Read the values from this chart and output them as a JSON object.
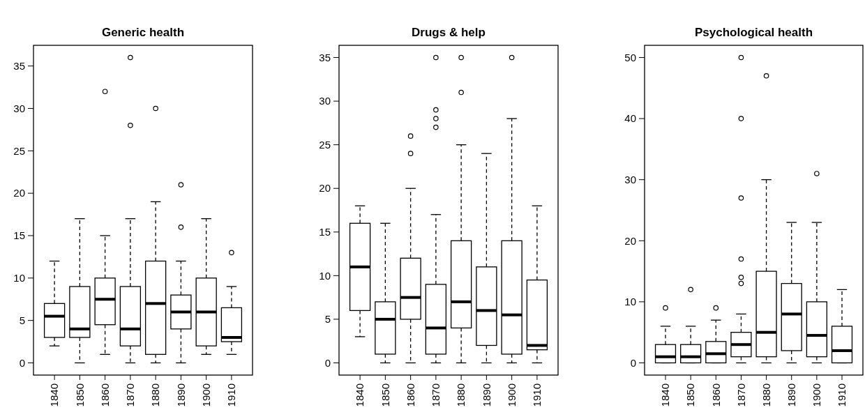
{
  "chart_data": [
    {
      "type": "box",
      "title": "Generic health",
      "categories": [
        "1840",
        "1850",
        "1860",
        "1870",
        "1880",
        "1890",
        "1900",
        "1910"
      ],
      "ylim": [
        -1.44,
        37.44
      ],
      "yticks": [
        0,
        5,
        10,
        15,
        20,
        25,
        30,
        35
      ],
      "boxes": [
        {
          "low": 2,
          "q1": 3,
          "median": 5.5,
          "q3": 7,
          "high": 12
        },
        {
          "low": 0,
          "q1": 3,
          "median": 4,
          "q3": 9,
          "high": 17
        },
        {
          "low": 1,
          "q1": 4.5,
          "median": 7.5,
          "q3": 10,
          "high": 15,
          "outliers": [
            32
          ]
        },
        {
          "low": 0,
          "q1": 2,
          "median": 4,
          "q3": 9,
          "high": 17,
          "outliers": [
            36,
            28
          ]
        },
        {
          "low": 0,
          "q1": 1,
          "median": 7,
          "q3": 12,
          "high": 19,
          "outliers": [
            30
          ]
        },
        {
          "low": 0,
          "q1": 4,
          "median": 6,
          "q3": 8,
          "high": 12,
          "outliers": [
            21,
            16
          ]
        },
        {
          "low": 1,
          "q1": 2,
          "median": 6,
          "q3": 10,
          "high": 17
        },
        {
          "low": 1,
          "q1": 2.5,
          "median": 3,
          "q3": 6.5,
          "high": 9,
          "outliers": [
            13
          ]
        }
      ]
    },
    {
      "type": "box",
      "title": "Drugs & help",
      "categories": [
        "1840",
        "1850",
        "1860",
        "1870",
        "1880",
        "1890",
        "1900",
        "1910"
      ],
      "ylim": [
        -1.4,
        36.4
      ],
      "yticks": [
        0,
        5,
        10,
        15,
        20,
        25,
        30,
        35
      ],
      "boxes": [
        {
          "low": 3,
          "q1": 6,
          "median": 11,
          "q3": 16,
          "high": 18
        },
        {
          "low": 0,
          "q1": 1,
          "median": 5,
          "q3": 7,
          "high": 16
        },
        {
          "low": 0,
          "q1": 5,
          "median": 7.5,
          "q3": 12,
          "high": 20,
          "outliers": [
            26,
            24
          ]
        },
        {
          "low": 0,
          "q1": 1,
          "median": 4,
          "q3": 9,
          "high": 17,
          "outliers": [
            35,
            29,
            28,
            27
          ]
        },
        {
          "low": 0,
          "q1": 4,
          "median": 7,
          "q3": 14,
          "high": 25,
          "outliers": [
            35,
            31
          ]
        },
        {
          "low": 0,
          "q1": 2,
          "median": 6,
          "q3": 11,
          "high": 24
        },
        {
          "low": 0,
          "q1": 1,
          "median": 5.5,
          "q3": 14,
          "high": 28,
          "outliers": [
            35
          ]
        },
        {
          "low": 0,
          "q1": 1.5,
          "median": 2,
          "q3": 9.5,
          "high": 18
        }
      ]
    },
    {
      "type": "box",
      "title": "Psychological health",
      "categories": [
        "1840",
        "1850",
        "1860",
        "1870",
        "1880",
        "1890",
        "1900",
        "1910"
      ],
      "ylim": [
        -2,
        52
      ],
      "yticks": [
        0,
        10,
        20,
        30,
        40,
        50
      ],
      "boxes": [
        {
          "low": 0,
          "q1": 0,
          "median": 1,
          "q3": 3,
          "high": 6,
          "outliers": [
            9
          ]
        },
        {
          "low": 0,
          "q1": 0,
          "median": 1,
          "q3": 3,
          "high": 6,
          "outliers": [
            12
          ]
        },
        {
          "low": 0,
          "q1": 0,
          "median": 1.5,
          "q3": 3.5,
          "high": 7,
          "outliers": [
            9
          ]
        },
        {
          "low": 0,
          "q1": 1,
          "median": 3,
          "q3": 5,
          "high": 8,
          "outliers": [
            50,
            40,
            27,
            17,
            14,
            13
          ]
        },
        {
          "low": 0,
          "q1": 1,
          "median": 5,
          "q3": 15,
          "high": 30,
          "outliers": [
            47
          ]
        },
        {
          "low": 0,
          "q1": 2,
          "median": 8,
          "q3": 13,
          "high": 23
        },
        {
          "low": 0,
          "q1": 1,
          "median": 4.5,
          "q3": 10,
          "high": 23,
          "outliers": [
            31
          ]
        },
        {
          "low": 0,
          "q1": 0,
          "median": 2,
          "q3": 6,
          "high": 12
        }
      ]
    }
  ]
}
